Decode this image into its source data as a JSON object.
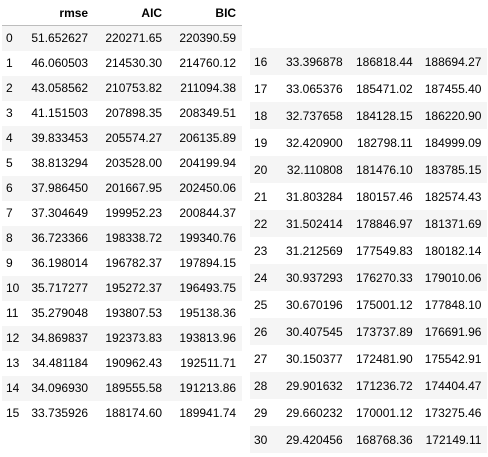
{
  "left_table": {
    "columns": [
      "",
      "rmse",
      "AIC",
      "BIC"
    ],
    "rows": [
      [
        "0",
        "51.652627",
        "220271.65",
        "220390.59"
      ],
      [
        "1",
        "46.060503",
        "214530.30",
        "214760.12"
      ],
      [
        "2",
        "43.058562",
        "210753.82",
        "211094.38"
      ],
      [
        "3",
        "41.151503",
        "207898.35",
        "208349.51"
      ],
      [
        "4",
        "39.833453",
        "205574.27",
        "206135.89"
      ],
      [
        "5",
        "38.813294",
        "203528.00",
        "204199.94"
      ],
      [
        "6",
        "37.986450",
        "201667.95",
        "202450.06"
      ],
      [
        "7",
        "37.304649",
        "199952.23",
        "200844.37"
      ],
      [
        "8",
        "36.723366",
        "198338.72",
        "199340.76"
      ],
      [
        "9",
        "36.198014",
        "196782.37",
        "197894.15"
      ],
      [
        "10",
        "35.717277",
        "195272.37",
        "196493.75"
      ],
      [
        "11",
        "35.279048",
        "193807.53",
        "195138.36"
      ],
      [
        "12",
        "34.869837",
        "192373.83",
        "193813.96"
      ],
      [
        "13",
        "34.481184",
        "190962.43",
        "192511.71"
      ],
      [
        "14",
        "34.096930",
        "189555.58",
        "191213.86"
      ],
      [
        "15",
        "33.735926",
        "188174.60",
        "189941.74"
      ]
    ]
  },
  "right_table": {
    "rows": [
      [
        "16",
        "33.396878",
        "186818.44",
        "188694.27"
      ],
      [
        "17",
        "33.065376",
        "185471.02",
        "187455.40"
      ],
      [
        "18",
        "32.737658",
        "184128.15",
        "186220.90"
      ],
      [
        "19",
        "32.420900",
        "182798.11",
        "184999.09"
      ],
      [
        "20",
        "32.110808",
        "181476.10",
        "183785.15"
      ],
      [
        "21",
        "31.803284",
        "180157.46",
        "182574.43"
      ],
      [
        "22",
        "31.502414",
        "178846.97",
        "181371.69"
      ],
      [
        "23",
        "31.212569",
        "177549.83",
        "180182.14"
      ],
      [
        "24",
        "30.937293",
        "176270.33",
        "179010.06"
      ],
      [
        "25",
        "30.670196",
        "175001.12",
        "177848.10"
      ],
      [
        "26",
        "30.407545",
        "173737.89",
        "176691.96"
      ],
      [
        "27",
        "30.150377",
        "172481.90",
        "175542.91"
      ],
      [
        "28",
        "29.901632",
        "171236.72",
        "174404.47"
      ],
      [
        "29",
        "29.660232",
        "170001.12",
        "173275.46"
      ],
      [
        "30",
        "29.420456",
        "168768.36",
        "172149.11"
      ]
    ]
  }
}
